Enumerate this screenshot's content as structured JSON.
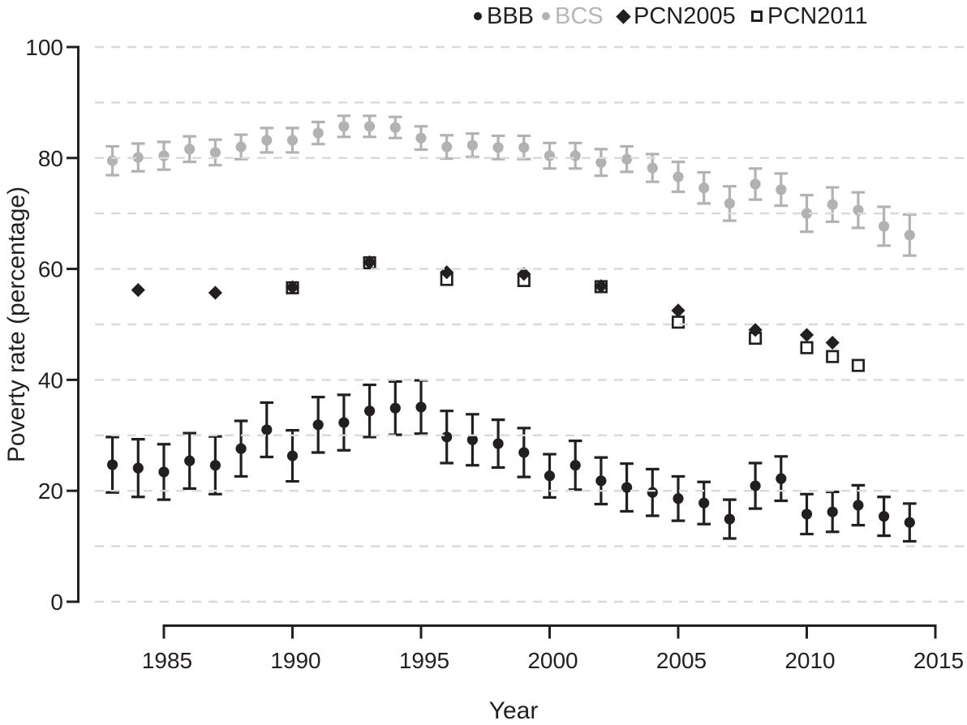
{
  "chart_data": {
    "type": "scatter",
    "title": "",
    "xlabel": "Year",
    "ylabel": "Poverty rate (percentage)",
    "xlim": [
      1982.5,
      2015
    ],
    "ylim": [
      0,
      100
    ],
    "x_ticks": [
      "1985",
      "1990",
      "1995",
      "2000",
      "2005",
      "2010",
      "2015"
    ],
    "x_tick_values": [
      1985,
      1990,
      1995,
      2000,
      2005,
      2010,
      2015
    ],
    "y_ticks": [
      "0",
      "20",
      "40",
      "60",
      "80",
      "100"
    ],
    "y_tick_values": [
      0,
      20,
      40,
      60,
      80,
      100
    ],
    "grid": {
      "axis": "y",
      "interval": 10,
      "style": "dashed",
      "color": "#d9d9d9",
      "on_top": true
    },
    "colors": {
      "black": "#231f20",
      "gray": "#b2b2b2",
      "grid": "#d9d9d9"
    },
    "legend": {
      "position": "top",
      "items": [
        {
          "label": "BBB",
          "marker": "filled-circle",
          "color": "#231f20",
          "label_color": "#231f20"
        },
        {
          "label": "BCS",
          "marker": "filled-circle",
          "color": "#b2b2b2",
          "label_color": "#b6b6b6"
        },
        {
          "label": "PCN2005",
          "marker": "filled-diamond",
          "color": "#231f20",
          "label_color": "#231f20"
        },
        {
          "label": "PCN2011",
          "marker": "open-square",
          "color": "#231f20",
          "label_color": "#231f20"
        }
      ]
    },
    "series": [
      {
        "name": "BBB",
        "marker": "filled-circle",
        "color": "#231f20",
        "x": [
          1983,
          1984,
          1985,
          1986,
          1987,
          1988,
          1989,
          1990,
          1991,
          1992,
          1993,
          1994,
          1995,
          1996,
          1997,
          1998,
          1999,
          2000,
          2001,
          2002,
          2003,
          2004,
          2005,
          2006,
          2007,
          2008,
          2009,
          2010,
          2011,
          2012,
          2013,
          2014
        ],
        "y": [
          24.7,
          24.1,
          23.4,
          25.4,
          24.6,
          27.6,
          31.0,
          26.3,
          31.9,
          32.3,
          34.4,
          34.9,
          35.1,
          29.7,
          29.2,
          28.5,
          26.9,
          22.7,
          24.6,
          21.8,
          20.6,
          19.7,
          18.6,
          17.8,
          14.9,
          20.9,
          22.2,
          15.8,
          16.2,
          17.4,
          15.4,
          14.3
        ],
        "err": [
          5.0,
          5.2,
          5.0,
          5.0,
          5.2,
          5.0,
          4.9,
          4.6,
          5.0,
          5.0,
          4.7,
          4.8,
          4.8,
          4.7,
          4.6,
          4.3,
          4.4,
          3.9,
          4.4,
          4.2,
          4.3,
          4.2,
          4.0,
          3.8,
          3.5,
          4.1,
          4.0,
          3.6,
          3.6,
          3.6,
          3.5,
          3.4
        ]
      },
      {
        "name": "BCS",
        "marker": "filled-circle",
        "color": "#b2b2b2",
        "x": [
          1983,
          1984,
          1985,
          1986,
          1987,
          1988,
          1989,
          1990,
          1991,
          1992,
          1993,
          1994,
          1995,
          1996,
          1997,
          1998,
          1999,
          2000,
          2001,
          2002,
          2003,
          2004,
          2005,
          2006,
          2007,
          2008,
          2009,
          2010,
          2011,
          2012,
          2013,
          2014
        ],
        "y": [
          79.5,
          80.1,
          80.4,
          81.6,
          81.0,
          82.0,
          83.2,
          83.2,
          84.5,
          85.7,
          85.7,
          85.5,
          83.6,
          82.0,
          82.3,
          81.9,
          81.9,
          80.4,
          80.4,
          79.2,
          79.8,
          78.2,
          76.6,
          74.6,
          71.8,
          75.3,
          74.3,
          70.0,
          71.6,
          70.6,
          67.7,
          66.1
        ],
        "err": [
          2.6,
          2.5,
          2.5,
          2.3,
          2.3,
          2.2,
          2.2,
          2.2,
          2.0,
          1.9,
          1.9,
          1.9,
          2.1,
          2.1,
          2.1,
          2.1,
          2.1,
          2.3,
          2.3,
          2.4,
          2.3,
          2.5,
          2.7,
          2.8,
          3.1,
          2.8,
          2.9,
          3.3,
          3.1,
          3.2,
          3.5,
          3.7
        ]
      },
      {
        "name": "PCN2005",
        "marker": "filled-diamond",
        "color": "#231f20",
        "x": [
          1984,
          1987,
          1990,
          1993,
          1996,
          1999,
          2002,
          2005,
          2008,
          2010,
          2011
        ],
        "y": [
          56.2,
          55.7,
          56.7,
          61.2,
          59.4,
          59.1,
          56.9,
          52.5,
          49.0,
          48.1,
          46.7
        ]
      },
      {
        "name": "PCN2011",
        "marker": "open-square",
        "color": "#231f20",
        "x": [
          1990,
          1993,
          1996,
          1999,
          2002,
          2005,
          2008,
          2010,
          2011,
          2012
        ],
        "y": [
          56.6,
          61.1,
          58.1,
          57.9,
          56.8,
          50.4,
          47.5,
          45.8,
          44.2,
          42.6
        ]
      }
    ]
  }
}
